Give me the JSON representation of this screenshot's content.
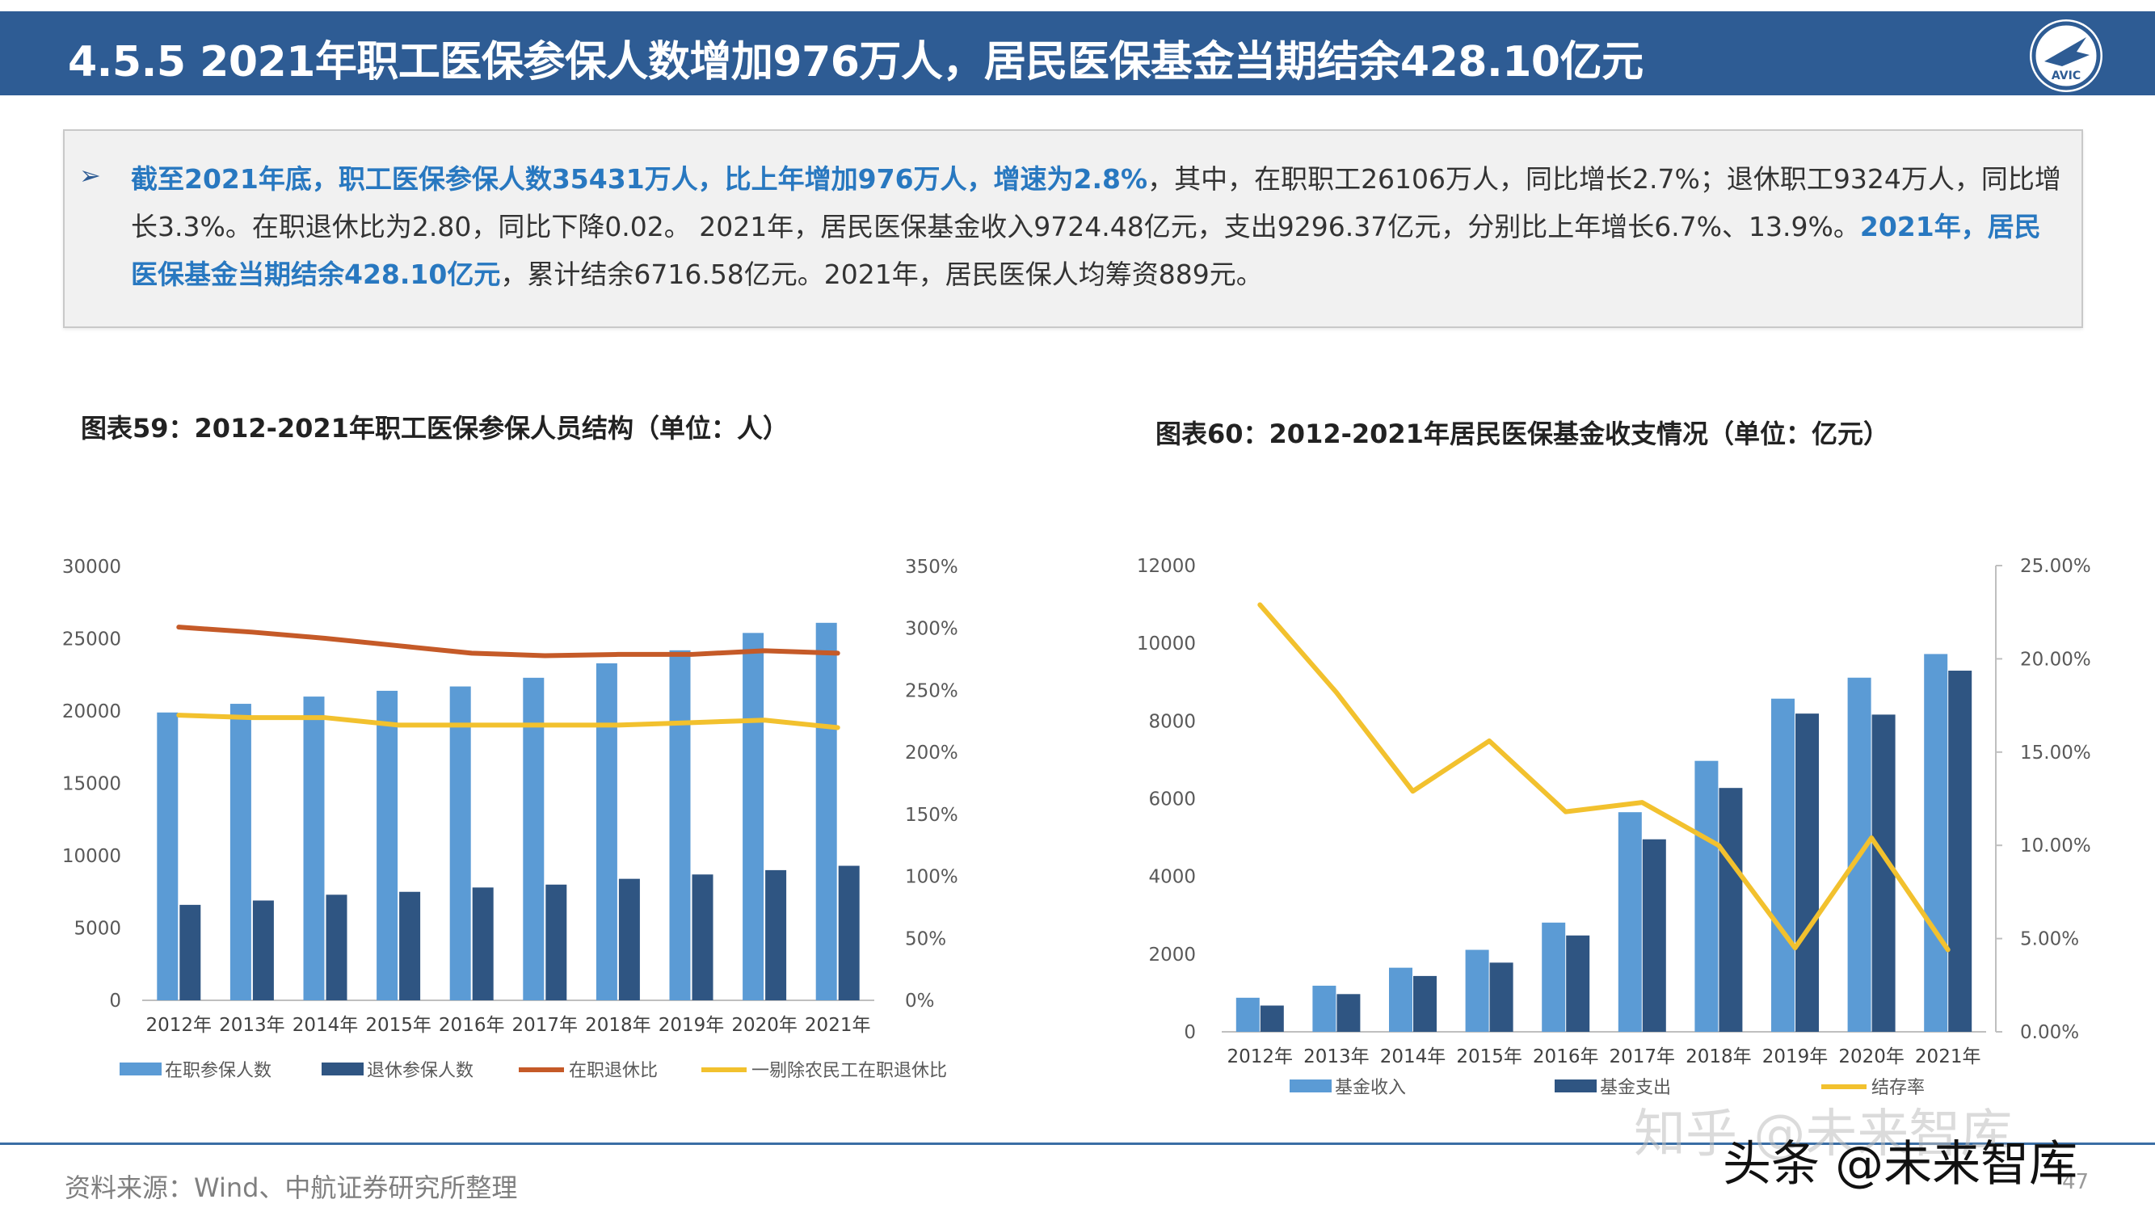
{
  "header": {
    "title": "4.5.5 2021年职工医保参保人数增加976万人，居民医保基金当期结余428.10亿元",
    "logo_text": "AVIC"
  },
  "summary": {
    "bullet": "➢",
    "seg1": "截至2021年底，职工医保参保人数35431万人，比上年增加976万人，增速为2.8%",
    "seg2": "，其中，在职职工26106万人，同比增长2.7%；退休职工9324万人，同比增长3.3%。在职退休比为2.80，同比下降0.02。 2021年，居民医保基金收入9724.48亿元，支出9296.37亿元，分别比上年增长6.7%、13.9%。",
    "seg3": "2021年，居民医保基金当期结余428.10亿元",
    "seg4": "，累计结余6716.58亿元。2021年，居民医保人均筹资889元。"
  },
  "chart_data": [
    {
      "type": "bar",
      "title": "图表59：2012-2021年职工医保参保人员结构（单位：人）",
      "categories": [
        "2012年",
        "2013年",
        "2014年",
        "2015年",
        "2016年",
        "2017年",
        "2018年",
        "2019年",
        "2020年",
        "2021年"
      ],
      "ylim": [
        0,
        30000
      ],
      "yticks": [
        "0",
        "5000",
        "10000",
        "15000",
        "20000",
        "25000",
        "30000"
      ],
      "y2lim": [
        0,
        3.5
      ],
      "y2ticks": [
        "0%",
        "50%",
        "100%",
        "150%",
        "200%",
        "250%",
        "300%",
        "350%"
      ],
      "series": [
        {
          "name": "在职参保人数",
          "kind": "bar",
          "axis": "left",
          "color": "#5b9bd5",
          "values": [
            19900,
            20500,
            21000,
            21400,
            21700,
            22300,
            23300,
            24200,
            25400,
            26100
          ]
        },
        {
          "name": "退休参保人数",
          "kind": "bar",
          "axis": "left",
          "color": "#2f5582",
          "values": [
            6600,
            6900,
            7300,
            7500,
            7800,
            8000,
            8400,
            8700,
            9000,
            9300
          ]
        },
        {
          "name": "在职退休比",
          "kind": "line",
          "axis": "right",
          "color": "#c55a28",
          "values": [
            3.01,
            2.97,
            2.92,
            2.86,
            2.8,
            2.78,
            2.79,
            2.79,
            2.82,
            2.8
          ]
        },
        {
          "name": "一剔除农民工在职退休比",
          "kind": "line",
          "axis": "right",
          "color": "#f2c12e",
          "values": [
            2.3,
            2.28,
            2.28,
            2.22,
            2.22,
            2.22,
            2.22,
            2.24,
            2.26,
            2.2
          ]
        }
      ],
      "grid": false,
      "legend": "bottom"
    },
    {
      "type": "bar",
      "title": "图表60：2012-2021年居民医保基金收支情况（单位：亿元）",
      "categories": [
        "2012年",
        "2013年",
        "2014年",
        "2015年",
        "2016年",
        "2017年",
        "2018年",
        "2019年",
        "2020年",
        "2021年"
      ],
      "ylim": [
        0,
        12000
      ],
      "yticks": [
        "0",
        "2000",
        "4000",
        "6000",
        "8000",
        "10000",
        "12000"
      ],
      "y2lim": [
        0,
        0.25
      ],
      "y2ticks": [
        "0.00%",
        "5.00%",
        "10.00%",
        "15.00%",
        "20.00%",
        "25.00%"
      ],
      "series": [
        {
          "name": "基金收入",
          "kind": "bar",
          "axis": "left",
          "color": "#5b9bd5",
          "values": [
            877,
            1187,
            1650,
            2110,
            2811,
            5653,
            6974,
            8575,
            9115,
            9724
          ]
        },
        {
          "name": "基金支出",
          "kind": "bar",
          "axis": "left",
          "color": "#2f5582",
          "values": [
            676,
            971,
            1437,
            1781,
            2480,
            4955,
            6277,
            8191,
            8165,
            9296
          ]
        },
        {
          "name": "结存率",
          "kind": "line",
          "axis": "right",
          "color": "#f2c12e",
          "values": [
            0.229,
            0.182,
            0.129,
            0.156,
            0.118,
            0.123,
            0.1,
            0.045,
            0.104,
            0.044
          ]
        }
      ],
      "grid": false,
      "legend": "bottom"
    }
  ],
  "footer": {
    "source": "资料来源：Wind、中航证券研究所整理",
    "page": "47",
    "watermark1": "知乎 @未来智库",
    "watermark2": "头条 @未来智库"
  }
}
